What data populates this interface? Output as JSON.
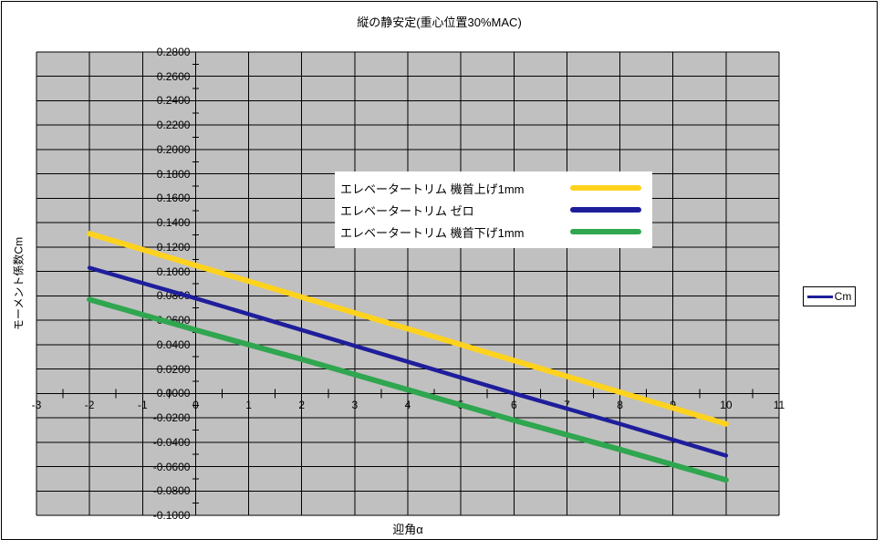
{
  "chart": {
    "title": "縦の静安定(重心位置30%MAC)",
    "x_axis": {
      "title": "迎角α",
      "min": -3,
      "max": 11,
      "major": 1,
      "minor": 0.5,
      "tick_labels": [
        "-3",
        "-2",
        "-1",
        "0",
        "1",
        "2",
        "3",
        "4",
        "5",
        "6",
        "7",
        "8",
        "9",
        "10",
        "11"
      ]
    },
    "y_axis": {
      "title": "モーメント係数Cm",
      "min": -0.1,
      "max": 0.28,
      "major": 0.02,
      "minor": 0.01,
      "tick_labels": [
        "0.2800",
        "0.2600",
        "0.2400",
        "0.2200",
        "0.2000",
        "0.1800",
        "0.1600",
        "0.1400",
        "0.1200",
        "0.1000",
        "0.0800",
        "0.0600",
        "0.0400",
        "0.0200",
        "0.0000",
        "-0.0200",
        "-0.0400",
        "-0.0600",
        "-0.0800",
        "-0.1000"
      ]
    },
    "right_legend": {
      "label": "Cm",
      "color": "#1E1E9C"
    },
    "colors": {
      "plot_background": "#C0C0C0",
      "gridline": "#000000",
      "frame": "#000000"
    }
  },
  "chart_data": {
    "type": "line",
    "title": "縦の静安定(重心位置30%MAC)",
    "xlabel": "迎角α",
    "ylabel": "モーメント係数Cm",
    "xlim": [
      -3,
      11
    ],
    "ylim": [
      -0.1,
      0.28
    ],
    "x_major": 1,
    "y_major": 0.02,
    "grid": true,
    "legend_position": "inside-upper-center",
    "x": [
      -2,
      0,
      2,
      4,
      6,
      8,
      10
    ],
    "series": [
      {
        "name": "エレベータートリム 機首上げ1mm",
        "color": "#FFD21E",
        "values": [
          0.131,
          0.105,
          0.079,
          0.053,
          0.027,
          0.001,
          -0.025
        ]
      },
      {
        "name": "エレベータートリム ゼロ",
        "color": "#1E1E9C",
        "values": [
          0.103,
          0.078,
          0.052,
          0.026,
          0.0,
          -0.025,
          -0.051
        ]
      },
      {
        "name": "エレベータートリム 機首下げ1mm",
        "color": "#2FA64F",
        "values": [
          0.077,
          0.052,
          0.028,
          0.003,
          -0.022,
          -0.046,
          -0.071
        ]
      }
    ]
  }
}
